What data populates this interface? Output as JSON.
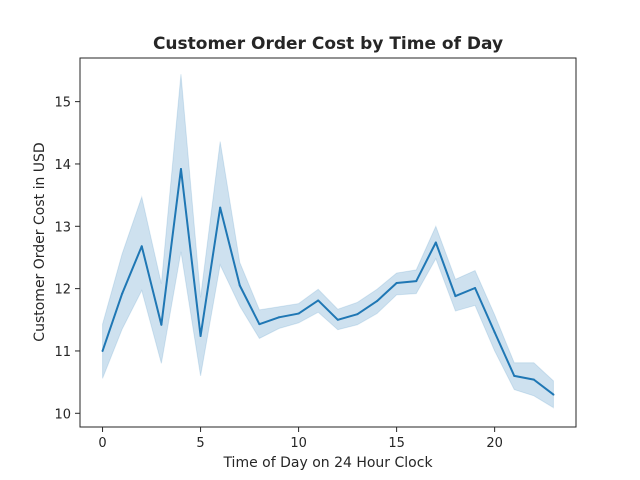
{
  "chart_data": {
    "type": "line",
    "title": "Customer Order Cost by Time of Day",
    "xlabel": "Time of Day on 24 Hour Clock",
    "ylabel": "Customer Order Cost in USD",
    "xlim": [
      -1.15,
      24.15
    ],
    "ylim": [
      9.78,
      15.7
    ],
    "x_ticks": [
      0,
      5,
      10,
      15,
      20
    ],
    "y_ticks": [
      10,
      11,
      12,
      13,
      14,
      15
    ],
    "grid": false,
    "legend": "none",
    "colors": {
      "line": "#1f77b4",
      "band": "#1f77b4",
      "axes": "#262626"
    },
    "x": [
      0,
      1,
      2,
      3,
      4,
      5,
      6,
      7,
      8,
      9,
      10,
      11,
      12,
      13,
      14,
      15,
      16,
      17,
      18,
      19,
      20,
      21,
      22,
      23
    ],
    "series": [
      {
        "values": [
          11.0,
          11.92,
          12.68,
          11.42,
          13.92,
          11.24,
          13.3,
          12.05,
          11.43,
          11.54,
          11.6,
          11.81,
          11.5,
          11.59,
          11.8,
          12.09,
          12.12,
          12.74,
          11.88,
          12.01,
          11.3,
          10.6,
          10.54,
          10.3
        ],
        "ci_lower": [
          10.56,
          11.35,
          11.97,
          10.8,
          12.59,
          10.6,
          12.38,
          11.72,
          11.2,
          11.36,
          11.45,
          11.62,
          11.34,
          11.42,
          11.6,
          11.9,
          11.92,
          12.48,
          11.64,
          11.73,
          11.0,
          10.38,
          10.28,
          10.09
        ],
        "ci_upper": [
          11.43,
          12.56,
          13.47,
          12.08,
          15.44,
          11.86,
          14.36,
          12.42,
          11.66,
          11.71,
          11.76,
          11.99,
          11.67,
          11.78,
          11.99,
          12.25,
          12.3,
          13.0,
          12.15,
          12.29,
          11.58,
          10.81,
          10.81,
          10.52
        ]
      }
    ]
  }
}
